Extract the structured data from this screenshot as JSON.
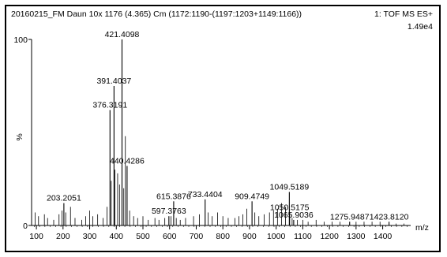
{
  "header": {
    "sample_title": "20160215_FM Daun 10x 1176 (4.365) Cm (1172:1190-(1197:1203+1149:1166))",
    "function_label": "1: TOF MS ES+",
    "intensity_label": "1.49e4"
  },
  "chart_data": {
    "type": "bar",
    "xlabel": "m/z",
    "ylabel": "%",
    "xlim": [
      82,
      1505
    ],
    "ylim": [
      0,
      100
    ],
    "x_ticks": [
      100,
      200,
      300,
      400,
      500,
      600,
      700,
      800,
      900,
      1000,
      1100,
      1200,
      1300,
      1400
    ],
    "y_ticks": [
      0,
      100
    ],
    "labeled_peaks": [
      {
        "mz": 203.2051,
        "intensity": 12,
        "label": "203.2051"
      },
      {
        "mz": 376.3191,
        "intensity": 62,
        "label": "376.3191"
      },
      {
        "mz": 391.4037,
        "intensity": 75,
        "label": "391.4037"
      },
      {
        "mz": 421.4098,
        "intensity": 100,
        "label": "421.4098"
      },
      {
        "mz": 440.4286,
        "intensity": 32,
        "label": "440.4286"
      },
      {
        "mz": 597.3763,
        "intensity": 5,
        "label": "597.3763"
      },
      {
        "mz": 615.3876,
        "intensity": 13,
        "label": "615.3876"
      },
      {
        "mz": 733.4404,
        "intensity": 14,
        "label": "733.4404"
      },
      {
        "mz": 909.4749,
        "intensity": 13,
        "label": "909.4749"
      },
      {
        "mz": 1049.5189,
        "intensity": 18,
        "label": "1049.5189"
      },
      {
        "mz": 1050.5175,
        "intensity": 7,
        "label": "1050.5175"
      },
      {
        "mz": 1065.9036,
        "intensity": 3,
        "label": "1065.9036"
      },
      {
        "mz": 1275.9487,
        "intensity": 2,
        "label": "1275.9487"
      },
      {
        "mz": 1423.812,
        "intensity": 2,
        "label": "1423.8120"
      }
    ],
    "minor_peaks": [
      {
        "mz": 95,
        "intensity": 7
      },
      {
        "mz": 108,
        "intensity": 5
      },
      {
        "mz": 130,
        "intensity": 6
      },
      {
        "mz": 142,
        "intensity": 4
      },
      {
        "mz": 165,
        "intensity": 3
      },
      {
        "mz": 185,
        "intensity": 6
      },
      {
        "mz": 196,
        "intensity": 8
      },
      {
        "mz": 210,
        "intensity": 7
      },
      {
        "mz": 228,
        "intensity": 10
      },
      {
        "mz": 245,
        "intensity": 4
      },
      {
        "mz": 270,
        "intensity": 3
      },
      {
        "mz": 285,
        "intensity": 5
      },
      {
        "mz": 300,
        "intensity": 8
      },
      {
        "mz": 312,
        "intensity": 5
      },
      {
        "mz": 330,
        "intensity": 6
      },
      {
        "mz": 350,
        "intensity": 4
      },
      {
        "mz": 365,
        "intensity": 10
      },
      {
        "mz": 381,
        "intensity": 24
      },
      {
        "mz": 395,
        "intensity": 30
      },
      {
        "mz": 405,
        "intensity": 28
      },
      {
        "mz": 412,
        "intensity": 22
      },
      {
        "mz": 428,
        "intensity": 20
      },
      {
        "mz": 434,
        "intensity": 48
      },
      {
        "mz": 450,
        "intensity": 8
      },
      {
        "mz": 465,
        "intensity": 5
      },
      {
        "mz": 480,
        "intensity": 4
      },
      {
        "mz": 500,
        "intensity": 5
      },
      {
        "mz": 520,
        "intensity": 3
      },
      {
        "mz": 545,
        "intensity": 4
      },
      {
        "mz": 560,
        "intensity": 3
      },
      {
        "mz": 582,
        "intensity": 4
      },
      {
        "mz": 605,
        "intensity": 5
      },
      {
        "mz": 625,
        "intensity": 4
      },
      {
        "mz": 640,
        "intensity": 3
      },
      {
        "mz": 660,
        "intensity": 4
      },
      {
        "mz": 690,
        "intensity": 5
      },
      {
        "mz": 712,
        "intensity": 6
      },
      {
        "mz": 745,
        "intensity": 7
      },
      {
        "mz": 760,
        "intensity": 5
      },
      {
        "mz": 780,
        "intensity": 7
      },
      {
        "mz": 800,
        "intensity": 5
      },
      {
        "mz": 820,
        "intensity": 4
      },
      {
        "mz": 845,
        "intensity": 4
      },
      {
        "mz": 860,
        "intensity": 5
      },
      {
        "mz": 875,
        "intensity": 6
      },
      {
        "mz": 890,
        "intensity": 9
      },
      {
        "mz": 920,
        "intensity": 7
      },
      {
        "mz": 935,
        "intensity": 5
      },
      {
        "mz": 955,
        "intensity": 6
      },
      {
        "mz": 975,
        "intensity": 7
      },
      {
        "mz": 990,
        "intensity": 8
      },
      {
        "mz": 1005,
        "intensity": 9
      },
      {
        "mz": 1020,
        "intensity": 12
      },
      {
        "mz": 1035,
        "intensity": 10
      },
      {
        "mz": 1060,
        "intensity": 4
      },
      {
        "mz": 1080,
        "intensity": 3
      },
      {
        "mz": 1100,
        "intensity": 3
      },
      {
        "mz": 1120,
        "intensity": 2
      },
      {
        "mz": 1150,
        "intensity": 3
      },
      {
        "mz": 1180,
        "intensity": 2
      },
      {
        "mz": 1210,
        "intensity": 2
      },
      {
        "mz": 1240,
        "intensity": 2
      },
      {
        "mz": 1300,
        "intensity": 2
      },
      {
        "mz": 1330,
        "intensity": 2
      },
      {
        "mz": 1360,
        "intensity": 2
      },
      {
        "mz": 1390,
        "intensity": 2
      },
      {
        "mz": 1450,
        "intensity": 1
      },
      {
        "mz": 1480,
        "intensity": 1
      }
    ]
  }
}
